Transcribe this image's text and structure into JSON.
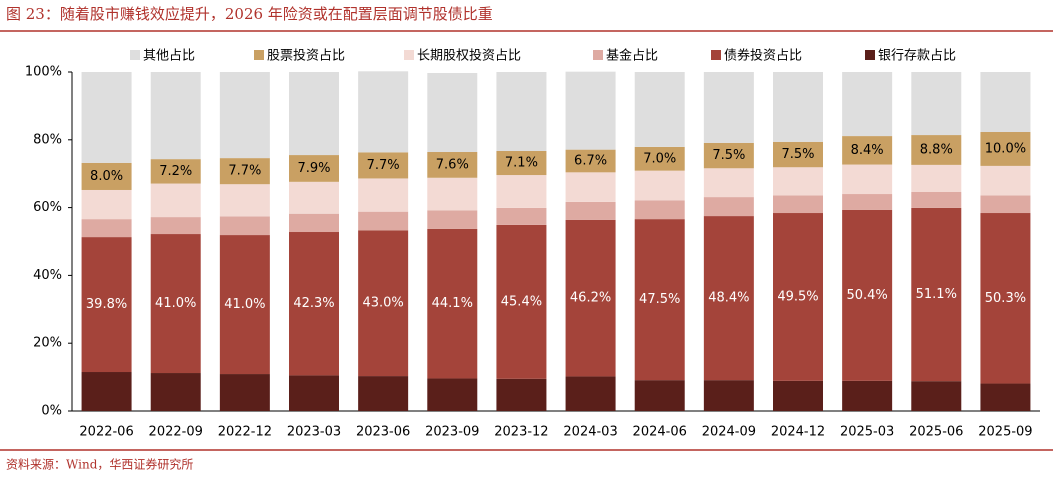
{
  "chart_data": {
    "type": "stacked_bar",
    "title": "图 23：随着股市赚钱效应提升，2026 年险资或在配置层面调节股债比重",
    "source": "资料来源：Wind，华西证券研究所",
    "categories": [
      "2022-06",
      "2022-09",
      "2022-12",
      "2023-03",
      "2023-06",
      "2023-09",
      "2023-12",
      "2024-03",
      "2024-06",
      "2024-09",
      "2024-12",
      "2025-03",
      "2025-06",
      "2025-09"
    ],
    "series": [
      {
        "name": "其他占比",
        "color": "#dedede",
        "values": [
          26.8,
          25.7,
          25.4,
          24.5,
          23.9,
          23.3,
          23.3,
          23.0,
          22.1,
          20.9,
          20.6,
          18.9,
          18.6,
          17.7
        ]
      },
      {
        "name": "股票投资占比",
        "color": "#c9a063",
        "values": [
          8.0,
          7.2,
          7.7,
          7.9,
          7.7,
          7.6,
          7.1,
          6.7,
          7.0,
          7.5,
          7.5,
          8.4,
          8.8,
          10.0
        ],
        "value_labels": [
          "8.0%",
          "7.2%",
          "7.7%",
          "7.9%",
          "7.7%",
          "7.6%",
          "7.1%",
          "6.7%",
          "7.0%",
          "7.5%",
          "7.5%",
          "8.4%",
          "8.8%",
          "10.0%"
        ]
      },
      {
        "name": "长期股权投资占比",
        "color": "#f3dad4",
        "values": [
          8.6,
          9.9,
          9.5,
          9.4,
          9.8,
          9.6,
          9.7,
          8.7,
          8.8,
          8.5,
          8.3,
          8.7,
          8.0,
          8.7
        ]
      },
      {
        "name": "基金占比",
        "color": "#deaaa2",
        "values": [
          5.3,
          5.0,
          5.5,
          5.4,
          5.5,
          5.5,
          5.0,
          5.3,
          5.5,
          5.6,
          5.2,
          4.7,
          4.7,
          5.2
        ]
      },
      {
        "name": "债券投资占比",
        "color": "#a4443a",
        "values": [
          39.8,
          41.0,
          41.0,
          42.3,
          43.0,
          44.1,
          45.4,
          46.2,
          47.5,
          48.4,
          49.5,
          50.4,
          51.1,
          50.3
        ],
        "value_labels": [
          "39.8%",
          "41.0%",
          "41.0%",
          "42.3%",
          "43.0%",
          "44.1%",
          "45.4%",
          "46.2%",
          "47.5%",
          "48.4%",
          "49.5%",
          "50.4%",
          "51.1%",
          "50.3%"
        ]
      },
      {
        "name": "银行存款占比",
        "color": "#5a1f1a",
        "values": [
          11.5,
          11.2,
          10.9,
          10.5,
          10.3,
          9.6,
          9.5,
          10.2,
          9.1,
          9.1,
          8.9,
          8.9,
          8.8,
          8.1
        ]
      }
    ],
    "ylim": [
      0,
      100
    ],
    "yticks": [
      {
        "value": 0,
        "label": "0%"
      },
      {
        "value": 20,
        "label": "20%"
      },
      {
        "value": 40,
        "label": "40%"
      },
      {
        "value": 60,
        "label": "60%"
      },
      {
        "value": 80,
        "label": "80%"
      },
      {
        "value": 100,
        "label": "100%"
      }
    ]
  }
}
